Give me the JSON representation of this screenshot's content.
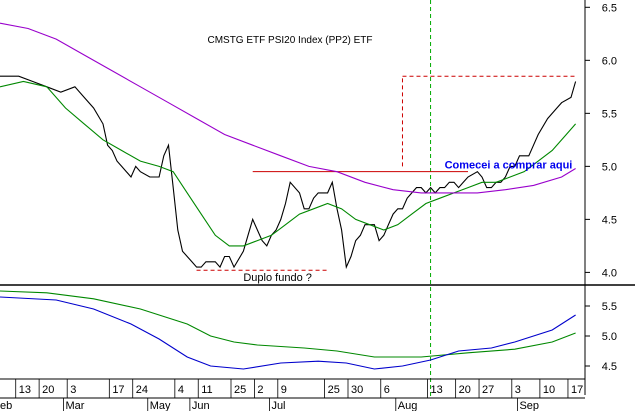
{
  "chart_data": [
    {
      "type": "line",
      "title": "CMSTG ETF PSI20 Index (PP2) ETF",
      "ylim": [
        3.9,
        6.55
      ],
      "y_ticks": [
        "6.5",
        "6.0",
        "5.5",
        "5.0",
        "4.5",
        "4.0"
      ],
      "y_tick_values": [
        6.5,
        6.0,
        5.5,
        5.0,
        4.5,
        4.0
      ],
      "colors": {
        "price": "#000000",
        "ma_short": "#008800",
        "ma_long": "#9900cc",
        "level": "#cc0000",
        "vline": "#00aa00",
        "annotation": "#0000ee"
      },
      "series": [
        {
          "role": "price",
          "points": [
            [
              0,
              5.85
            ],
            [
              4,
              5.85
            ],
            [
              7,
              5.8
            ],
            [
              10,
              5.75
            ],
            [
              13,
              5.7
            ],
            [
              16,
              5.75
            ],
            [
              18,
              5.65
            ],
            [
              20,
              5.55
            ],
            [
              22,
              5.4
            ],
            [
              23,
              5.2
            ],
            [
              24,
              5.15
            ],
            [
              25,
              5.05
            ],
            [
              26,
              5.0
            ],
            [
              27,
              4.95
            ],
            [
              28,
              4.9
            ],
            [
              29,
              5.0
            ],
            [
              30,
              4.95
            ],
            [
              32,
              4.9
            ],
            [
              34,
              4.9
            ],
            [
              35,
              5.1
            ],
            [
              36,
              5.2
            ],
            [
              37,
              4.8
            ],
            [
              38,
              4.4
            ],
            [
              39,
              4.2
            ],
            [
              40,
              4.15
            ],
            [
              41,
              4.1
            ],
            [
              42,
              4.05
            ],
            [
              43,
              4.05
            ],
            [
              44,
              4.1
            ],
            [
              46,
              4.1
            ],
            [
              47,
              4.05
            ],
            [
              48,
              4.15
            ],
            [
              49,
              4.15
            ],
            [
              50,
              4.05
            ],
            [
              52,
              4.2
            ],
            [
              53,
              4.35
            ],
            [
              54,
              4.5
            ],
            [
              56,
              4.3
            ],
            [
              57,
              4.25
            ],
            [
              58,
              4.35
            ],
            [
              59,
              4.4
            ],
            [
              60,
              4.5
            ],
            [
              61,
              4.65
            ],
            [
              62,
              4.85
            ],
            [
              64,
              4.75
            ],
            [
              65,
              4.6
            ],
            [
              66,
              4.6
            ],
            [
              67,
              4.7
            ],
            [
              68,
              4.75
            ],
            [
              70,
              4.75
            ],
            [
              71,
              4.85
            ],
            [
              72,
              4.6
            ],
            [
              73,
              4.4
            ],
            [
              74,
              4.05
            ],
            [
              75,
              4.15
            ],
            [
              76,
              4.3
            ],
            [
              77,
              4.35
            ],
            [
              78,
              4.45
            ],
            [
              80,
              4.45
            ],
            [
              81,
              4.3
            ],
            [
              82,
              4.35
            ],
            [
              83,
              4.45
            ],
            [
              84,
              4.55
            ],
            [
              85,
              4.6
            ],
            [
              86,
              4.6
            ],
            [
              87,
              4.7
            ],
            [
              88,
              4.75
            ],
            [
              89,
              4.8
            ],
            [
              90,
              4.8
            ],
            [
              91,
              4.75
            ],
            [
              92,
              4.8
            ],
            [
              93,
              4.75
            ],
            [
              94,
              4.8
            ],
            [
              95,
              4.8
            ],
            [
              96,
              4.85
            ],
            [
              97,
              4.85
            ],
            [
              98,
              4.8
            ],
            [
              99,
              4.85
            ],
            [
              100,
              4.9
            ],
            [
              102,
              4.95
            ],
            [
              103,
              4.9
            ],
            [
              104,
              4.8
            ],
            [
              105,
              4.8
            ],
            [
              106,
              4.85
            ],
            [
              107,
              4.85
            ],
            [
              108,
              4.9
            ],
            [
              109,
              5.0
            ],
            [
              110,
              5.0
            ],
            [
              111,
              5.1
            ],
            [
              112,
              5.1
            ],
            [
              113,
              5.1
            ],
            [
              114,
              5.2
            ],
            [
              115,
              5.3
            ],
            [
              117,
              5.45
            ],
            [
              119,
              5.55
            ],
            [
              120,
              5.6
            ],
            [
              122,
              5.65
            ],
            [
              123,
              5.8
            ]
          ]
        },
        {
          "role": "ma_short",
          "points": [
            [
              0,
              5.75
            ],
            [
              5,
              5.8
            ],
            [
              10,
              5.75
            ],
            [
              14,
              5.55
            ],
            [
              18,
              5.4
            ],
            [
              22,
              5.25
            ],
            [
              26,
              5.15
            ],
            [
              30,
              5.05
            ],
            [
              34,
              5.0
            ],
            [
              37,
              4.95
            ],
            [
              40,
              4.75
            ],
            [
              43,
              4.55
            ],
            [
              46,
              4.35
            ],
            [
              49,
              4.25
            ],
            [
              52,
              4.25
            ],
            [
              55,
              4.3
            ],
            [
              58,
              4.35
            ],
            [
              61,
              4.45
            ],
            [
              64,
              4.55
            ],
            [
              67,
              4.6
            ],
            [
              70,
              4.65
            ],
            [
              73,
              4.6
            ],
            [
              76,
              4.5
            ],
            [
              79,
              4.45
            ],
            [
              82,
              4.4
            ],
            [
              85,
              4.45
            ],
            [
              88,
              4.55
            ],
            [
              91,
              4.65
            ],
            [
              94,
              4.7
            ],
            [
              97,
              4.75
            ],
            [
              100,
              4.8
            ],
            [
              103,
              4.85
            ],
            [
              106,
              4.85
            ],
            [
              109,
              4.9
            ],
            [
              112,
              4.95
            ],
            [
              115,
              5.05
            ],
            [
              118,
              5.15
            ],
            [
              121,
              5.3
            ],
            [
              123,
              5.4
            ]
          ]
        },
        {
          "role": "ma_long",
          "points": [
            [
              0,
              6.35
            ],
            [
              6,
              6.3
            ],
            [
              12,
              6.2
            ],
            [
              18,
              6.05
            ],
            [
              24,
              5.9
            ],
            [
              30,
              5.75
            ],
            [
              36,
              5.6
            ],
            [
              42,
              5.45
            ],
            [
              48,
              5.3
            ],
            [
              54,
              5.2
            ],
            [
              60,
              5.1
            ],
            [
              66,
              5.0
            ],
            [
              72,
              4.95
            ],
            [
              78,
              4.85
            ],
            [
              84,
              4.78
            ],
            [
              90,
              4.75
            ],
            [
              96,
              4.75
            ],
            [
              102,
              4.75
            ],
            [
              108,
              4.78
            ],
            [
              114,
              4.82
            ],
            [
              120,
              4.9
            ],
            [
              123,
              4.98
            ]
          ]
        }
      ],
      "levels": [
        {
          "style": "solid",
          "y": 4.95,
          "x_from": 54,
          "x_to": 100
        },
        {
          "style": "dashed",
          "y": 4.02,
          "x_from": 42,
          "x_to": 70
        },
        {
          "style": "dashed",
          "y": 5.85,
          "x_from": 86,
          "x_to": 123
        },
        {
          "style": "dashed",
          "y": null,
          "x": 86,
          "y_from": 5.0,
          "y_to": 5.85
        }
      ],
      "vline_x": 92,
      "annotations": [
        {
          "text": "Duplo fundo ?",
          "x": 52,
          "y": 3.92
        },
        {
          "text": "Comecei a comprar aqui",
          "x": 95,
          "y": 4.98
        },
        {
          "text": "↑",
          "x": 112,
          "y": 4.98
        }
      ]
    },
    {
      "type": "line",
      "title": "",
      "ylim": [
        4.3,
        5.8
      ],
      "y_ticks": [
        "5.5",
        "5.0",
        "4.5"
      ],
      "y_tick_values": [
        5.5,
        5.0,
        4.5
      ],
      "series": [
        {
          "role": "green",
          "points": [
            [
              0,
              5.75
            ],
            [
              10,
              5.72
            ],
            [
              20,
              5.62
            ],
            [
              30,
              5.45
            ],
            [
              40,
              5.2
            ],
            [
              45,
              5.0
            ],
            [
              50,
              4.9
            ],
            [
              55,
              4.85
            ],
            [
              65,
              4.8
            ],
            [
              72,
              4.75
            ],
            [
              80,
              4.65
            ],
            [
              90,
              4.65
            ],
            [
              100,
              4.72
            ],
            [
              110,
              4.78
            ],
            [
              118,
              4.9
            ],
            [
              123,
              5.05
            ]
          ]
        },
        {
          "role": "blue",
          "points": [
            [
              0,
              5.65
            ],
            [
              12,
              5.6
            ],
            [
              20,
              5.45
            ],
            [
              28,
              5.2
            ],
            [
              34,
              4.95
            ],
            [
              40,
              4.65
            ],
            [
              45,
              4.5
            ],
            [
              52,
              4.45
            ],
            [
              60,
              4.55
            ],
            [
              68,
              4.58
            ],
            [
              74,
              4.55
            ],
            [
              80,
              4.45
            ],
            [
              86,
              4.5
            ],
            [
              92,
              4.6
            ],
            [
              98,
              4.75
            ],
            [
              105,
              4.8
            ],
            [
              110,
              4.9
            ],
            [
              118,
              5.1
            ],
            [
              123,
              5.35
            ]
          ]
        }
      ]
    }
  ],
  "x_axis": {
    "day_labels": [
      {
        "t": "13",
        "x": 4
      },
      {
        "t": "20",
        "x": 9
      },
      {
        "t": "3",
        "x": 15
      },
      {
        "t": "17",
        "x": 24
      },
      {
        "t": "24",
        "x": 29
      },
      {
        "t": "4",
        "x": 38
      },
      {
        "t": "11",
        "x": 43
      },
      {
        "t": "25",
        "x": 50
      },
      {
        "t": "2",
        "x": 55
      },
      {
        "t": "9",
        "x": 60
      },
      {
        "t": "25",
        "x": 70
      },
      {
        "t": "30",
        "x": 75
      },
      {
        "t": "6",
        "x": 82
      },
      {
        "t": "13",
        "x": 92
      },
      {
        "t": "20",
        "x": 98
      },
      {
        "t": "27",
        "x": 103
      },
      {
        "t": "3",
        "x": 110
      },
      {
        "t": "10",
        "x": 116
      },
      {
        "t": "17",
        "x": 122
      }
    ],
    "month_labels": [
      {
        "t": "eb",
        "x": 0
      },
      {
        "t": "Mar",
        "x": 14
      },
      {
        "t": "May",
        "x": 32
      },
      {
        "t": "Jun",
        "x": 41
      },
      {
        "t": "Jul",
        "x": 58
      },
      {
        "t": "Aug",
        "x": 85
      },
      {
        "t": "Sep",
        "x": 111
      }
    ]
  }
}
